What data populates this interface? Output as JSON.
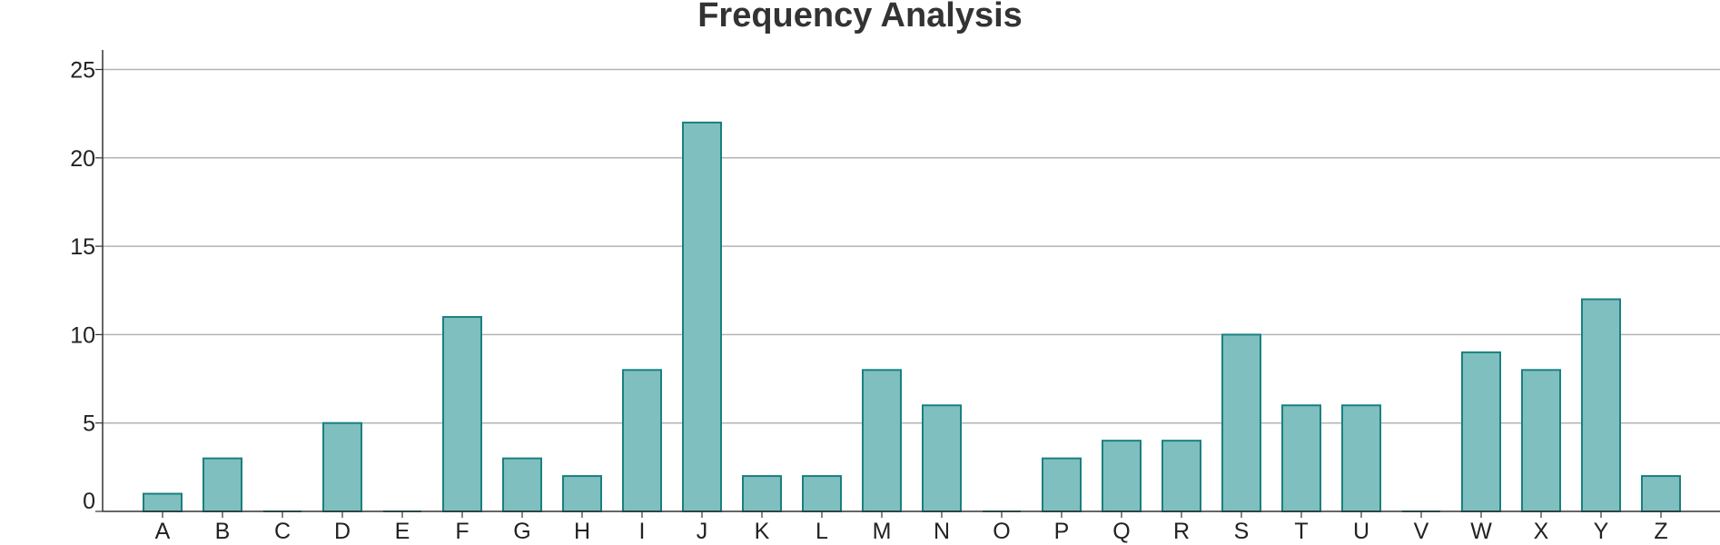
{
  "chart_data": {
    "type": "bar",
    "title": "Frequency Analysis",
    "xlabel": "",
    "ylabel": "",
    "categories": [
      "A",
      "B",
      "C",
      "D",
      "E",
      "F",
      "G",
      "H",
      "I",
      "J",
      "K",
      "L",
      "M",
      "N",
      "O",
      "P",
      "Q",
      "R",
      "S",
      "T",
      "U",
      "V",
      "W",
      "X",
      "Y",
      "Z"
    ],
    "values": [
      1,
      3,
      0,
      5,
      0,
      11,
      3,
      2,
      8,
      22,
      2,
      2,
      8,
      6,
      0,
      3,
      4,
      4,
      10,
      6,
      6,
      0,
      9,
      8,
      12,
      2
    ],
    "ylim": [
      0,
      26
    ],
    "yticks": [
      0,
      5,
      10,
      15,
      20,
      25
    ],
    "grid": true,
    "legend": "none",
    "colors": {
      "bar_fill": "#80bfbf",
      "bar_stroke": "#1a8080",
      "grid": "#b3b3b3",
      "axis": "#333333"
    }
  }
}
